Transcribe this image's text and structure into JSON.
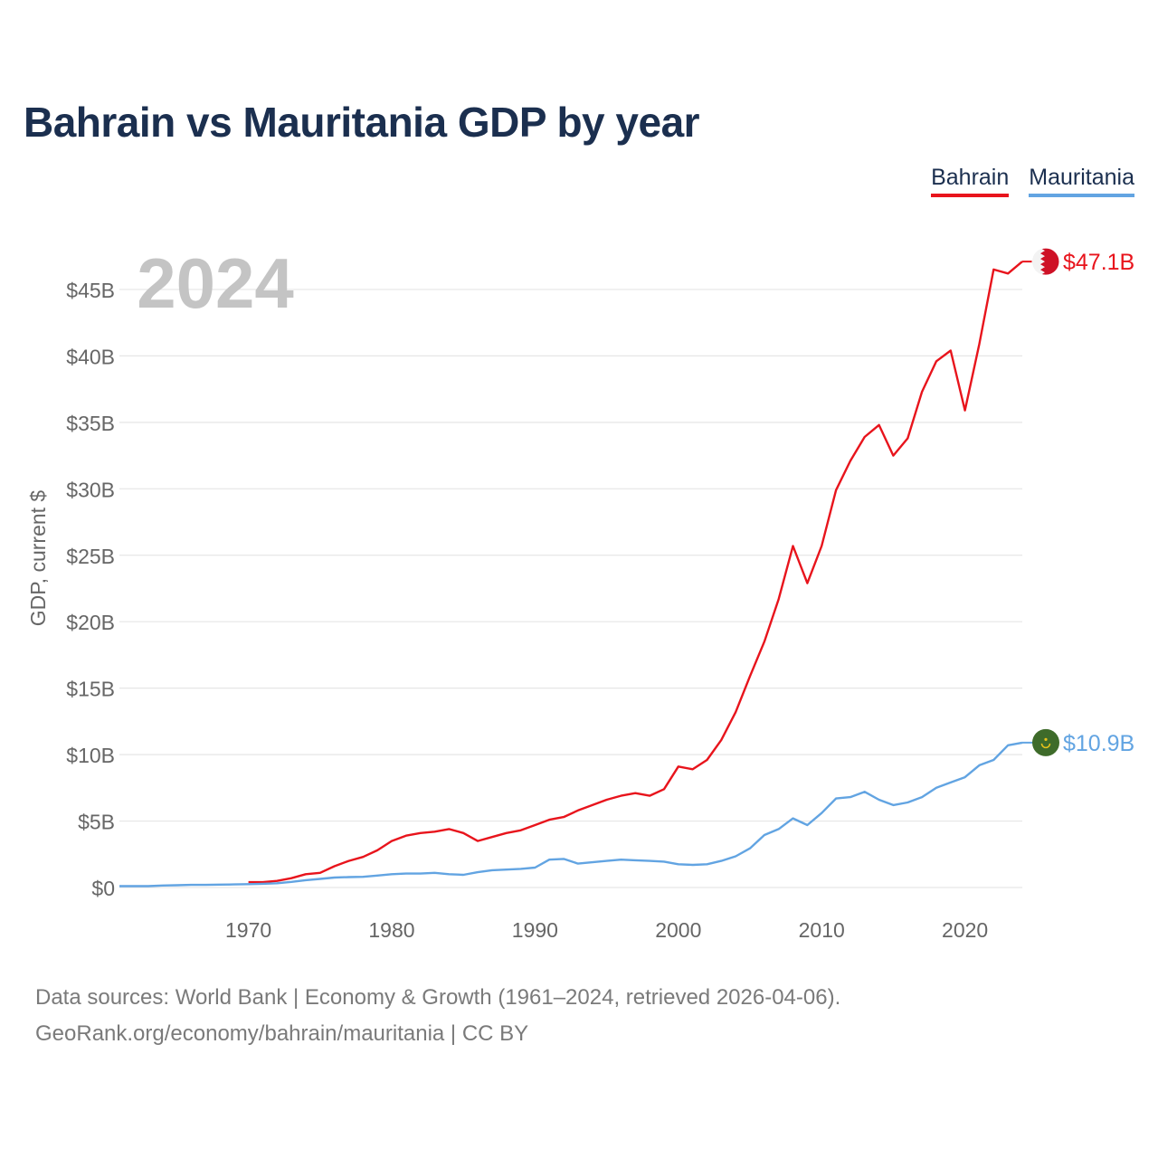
{
  "title": "Bahrain vs Mauritania GDP by year",
  "legend": {
    "bahrain": "Bahrain",
    "mauritania": "Mauritania"
  },
  "year_label": "2024",
  "source": {
    "line1": "Data sources: World Bank | Economy & Growth (1961–2024, retrieved 2026-04-06).",
    "line2": "GeoRank.org/economy/bahrain/mauritania | CC BY"
  },
  "colors": {
    "bahrain": "#e8141c",
    "mauritania": "#62a4e2",
    "title": "#1b2f4f",
    "grid": "#e6e6e6",
    "axis_text": "#666666",
    "year_watermark": "#c4c4c4"
  },
  "chart_data": {
    "type": "line",
    "title": "Bahrain vs Mauritania GDP by year",
    "xlabel": "",
    "ylabel": "GDP, current $",
    "xlim": [
      1961,
      2024
    ],
    "ylim": [
      0,
      47.1
    ],
    "x_ticks": [
      1970,
      1980,
      1990,
      2000,
      2010,
      2020
    ],
    "y_ticks": [
      0,
      5,
      10,
      15,
      20,
      25,
      30,
      35,
      40,
      45
    ],
    "y_tick_labels": [
      "$0",
      "$5B",
      "$10B",
      "$15B",
      "$20B",
      "$25B",
      "$30B",
      "$35B",
      "$40B",
      "$45B"
    ],
    "units": "billions USD",
    "grid": true,
    "series": [
      {
        "name": "Bahrain",
        "end_label": "$47.1B",
        "flag_icon": "bahrain-flag-icon",
        "x": [
          1970,
          1971,
          1972,
          1973,
          1974,
          1975,
          1976,
          1977,
          1978,
          1979,
          1980,
          1981,
          1982,
          1983,
          1984,
          1985,
          1986,
          1987,
          1988,
          1989,
          1990,
          1991,
          1992,
          1993,
          1994,
          1995,
          1996,
          1997,
          1998,
          1999,
          2000,
          2001,
          2002,
          2003,
          2004,
          2005,
          2006,
          2007,
          2008,
          2009,
          2010,
          2011,
          2012,
          2013,
          2014,
          2015,
          2016,
          2017,
          2018,
          2019,
          2020,
          2021,
          2022,
          2023,
          2024
        ],
        "values": [
          0.4,
          0.4,
          0.5,
          0.7,
          1.0,
          1.1,
          1.6,
          2.0,
          2.3,
          2.8,
          3.5,
          3.9,
          4.1,
          4.2,
          4.4,
          4.1,
          3.5,
          3.8,
          4.1,
          4.3,
          4.7,
          5.1,
          5.3,
          5.8,
          6.2,
          6.6,
          6.9,
          7.1,
          6.9,
          7.4,
          9.1,
          8.9,
          9.6,
          11.1,
          13.2,
          15.9,
          18.5,
          21.7,
          25.7,
          22.9,
          25.7,
          29.9,
          32.1,
          33.9,
          34.8,
          32.5,
          33.8,
          37.3,
          39.6,
          40.4,
          35.9,
          40.9,
          46.5,
          46.2,
          47.1
        ]
      },
      {
        "name": "Mauritania",
        "end_label": "$10.9B",
        "flag_icon": "mauritania-flag-icon",
        "x": [
          1961,
          1962,
          1963,
          1964,
          1965,
          1966,
          1967,
          1968,
          1969,
          1970,
          1971,
          1972,
          1973,
          1974,
          1975,
          1976,
          1977,
          1978,
          1979,
          1980,
          1981,
          1982,
          1983,
          1984,
          1985,
          1986,
          1987,
          1988,
          1989,
          1990,
          1991,
          1992,
          1993,
          1994,
          1995,
          1996,
          1997,
          1998,
          1999,
          2000,
          2001,
          2002,
          2003,
          2004,
          2005,
          2006,
          2007,
          2008,
          2009,
          2010,
          2011,
          2012,
          2013,
          2014,
          2015,
          2016,
          2017,
          2018,
          2019,
          2020,
          2021,
          2022,
          2023,
          2024
        ],
        "values": [
          0.1,
          0.1,
          0.1,
          0.15,
          0.17,
          0.2,
          0.2,
          0.22,
          0.23,
          0.25,
          0.28,
          0.32,
          0.42,
          0.55,
          0.65,
          0.75,
          0.78,
          0.8,
          0.9,
          1.0,
          1.05,
          1.05,
          1.1,
          1.0,
          0.95,
          1.15,
          1.3,
          1.35,
          1.4,
          1.5,
          2.1,
          2.15,
          1.8,
          1.9,
          2.0,
          2.1,
          2.05,
          2.0,
          1.95,
          1.75,
          1.7,
          1.75,
          2.0,
          2.35,
          2.95,
          3.95,
          4.4,
          5.2,
          4.7,
          5.6,
          6.7,
          6.8,
          7.2,
          6.6,
          6.2,
          6.4,
          6.8,
          7.5,
          7.9,
          8.3,
          9.2,
          9.6,
          10.7,
          10.9
        ]
      }
    ]
  }
}
